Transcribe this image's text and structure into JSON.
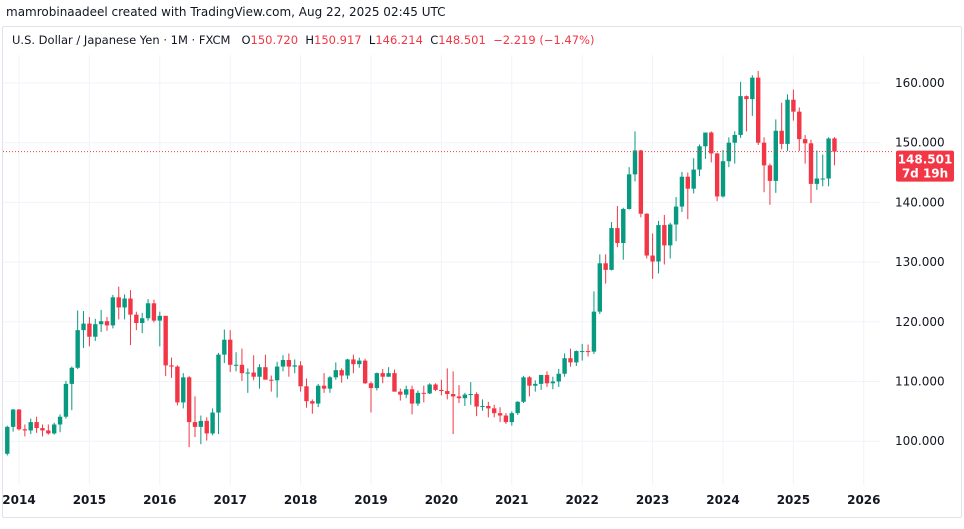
{
  "credit": "mamrobinaadeel created with TradingView.com, Aug 22, 2025 02:45 UTC",
  "legend": {
    "symbol": "U.S. Dollar / Japanese Yen",
    "interval": "1M",
    "source": "FXCM",
    "open_label": "O",
    "open": "150.720",
    "high_label": "H",
    "high": "150.917",
    "low_label": "L",
    "low": "146.214",
    "close_label": "C",
    "close": "148.501",
    "change": "−2.219 (−1.47%)"
  },
  "price_label": {
    "price": "148.501",
    "countdown": "7d 19h"
  },
  "colors": {
    "up": "#089981",
    "down": "#f23645",
    "grid": "#f0f3fa",
    "last_price": "#f23645"
  },
  "chart_data": {
    "type": "candlestick",
    "interval": "1M",
    "first_month": "2013-11",
    "last_price": 148.501,
    "ylim": [
      95,
      165
    ],
    "yticks": [
      "100.000",
      "110.000",
      "120.000",
      "130.000",
      "140.000",
      "150.000",
      "160.000"
    ],
    "xticks": [
      "2014",
      "2015",
      "2016",
      "2017",
      "2018",
      "2019",
      "2020",
      "2021",
      "2022",
      "2023",
      "2024",
      "2025",
      "2026"
    ],
    "grid": true,
    "ohlc": [
      [
        97.9,
        102.6,
        97.6,
        102.4
      ],
      [
        102.4,
        105.4,
        101.6,
        105.3
      ],
      [
        105.3,
        105.4,
        101.8,
        102.0
      ],
      [
        102.0,
        102.8,
        100.8,
        101.8
      ],
      [
        101.8,
        103.8,
        101.2,
        103.2
      ],
      [
        103.2,
        104.1,
        101.4,
        102.2
      ],
      [
        102.2,
        102.8,
        100.8,
        101.8
      ],
      [
        101.8,
        102.8,
        101.1,
        101.3
      ],
      [
        101.3,
        103.1,
        101.1,
        102.8
      ],
      [
        102.8,
        104.5,
        101.5,
        104.1
      ],
      [
        104.1,
        110.1,
        103.8,
        109.6
      ],
      [
        109.6,
        112.5,
        105.2,
        112.3
      ],
      [
        112.3,
        121.9,
        112.1,
        118.6
      ],
      [
        118.6,
        121.8,
        115.6,
        119.7
      ],
      [
        119.7,
        120.8,
        115.9,
        117.5
      ],
      [
        117.5,
        120.5,
        116.8,
        119.6
      ],
      [
        119.6,
        122.0,
        118.3,
        120.1
      ],
      [
        120.1,
        120.8,
        118.5,
        119.4
      ],
      [
        119.4,
        124.5,
        118.9,
        124.1
      ],
      [
        124.1,
        125.9,
        120.4,
        122.4
      ],
      [
        122.4,
        124.6,
        120.4,
        123.9
      ],
      [
        123.9,
        125.3,
        116.1,
        121.2
      ],
      [
        121.2,
        121.7,
        118.6,
        119.8
      ],
      [
        119.8,
        121.5,
        118.1,
        120.6
      ],
      [
        120.6,
        123.8,
        120.2,
        123.1
      ],
      [
        123.1,
        123.7,
        119.9,
        120.2
      ],
      [
        120.2,
        121.7,
        115.9,
        121.0
      ],
      [
        121.0,
        121.0,
        110.9,
        112.7
      ],
      [
        112.7,
        114.0,
        110.6,
        112.5
      ],
      [
        112.5,
        112.7,
        106.0,
        106.5
      ],
      [
        106.5,
        111.4,
        105.5,
        110.7
      ],
      [
        110.7,
        110.9,
        99.0,
        103.2
      ],
      [
        103.2,
        107.5,
        100.7,
        102.4
      ],
      [
        102.4,
        104.3,
        99.5,
        103.4
      ],
      [
        103.4,
        104.0,
        100.1,
        101.3
      ],
      [
        101.3,
        105.5,
        101.0,
        104.8
      ],
      [
        104.8,
        114.8,
        101.2,
        114.5
      ],
      [
        114.5,
        118.7,
        113.1,
        117.0
      ],
      [
        117.0,
        118.6,
        111.6,
        112.8
      ],
      [
        112.8,
        114.9,
        111.7,
        112.8
      ],
      [
        112.8,
        115.5,
        110.1,
        111.4
      ],
      [
        111.4,
        112.2,
        108.1,
        111.5
      ],
      [
        111.5,
        114.4,
        110.2,
        110.8
      ],
      [
        110.8,
        112.9,
        108.8,
        112.4
      ],
      [
        112.4,
        114.5,
        110.6,
        110.3
      ],
      [
        110.3,
        111.0,
        108.3,
        110.2
      ],
      [
        110.2,
        113.3,
        107.3,
        112.5
      ],
      [
        112.5,
        114.4,
        111.7,
        113.6
      ],
      [
        113.6,
        114.7,
        110.8,
        112.5
      ],
      [
        112.5,
        113.7,
        111.4,
        112.7
      ],
      [
        112.7,
        113.4,
        108.3,
        109.2
      ],
      [
        109.2,
        110.5,
        105.6,
        106.7
      ],
      [
        106.7,
        107.0,
        104.6,
        106.3
      ],
      [
        106.3,
        109.6,
        105.7,
        109.3
      ],
      [
        109.3,
        111.4,
        108.1,
        108.8
      ],
      [
        108.8,
        110.9,
        108.1,
        110.7
      ],
      [
        110.7,
        113.2,
        110.3,
        111.9
      ],
      [
        111.9,
        112.2,
        109.8,
        111.0
      ],
      [
        111.0,
        113.8,
        110.4,
        113.7
      ],
      [
        113.7,
        114.5,
        111.4,
        112.9
      ],
      [
        112.9,
        114.0,
        112.3,
        113.5
      ],
      [
        113.5,
        113.8,
        109.6,
        109.7
      ],
      [
        109.7,
        110.0,
        104.8,
        108.9
      ],
      [
        108.9,
        111.5,
        108.5,
        111.4
      ],
      [
        111.4,
        112.1,
        109.7,
        110.8
      ],
      [
        110.8,
        112.4,
        110.8,
        111.4
      ],
      [
        111.4,
        112.0,
        108.3,
        108.3
      ],
      [
        108.3,
        108.8,
        106.8,
        107.8
      ],
      [
        107.8,
        109.3,
        107.2,
        108.7
      ],
      [
        108.7,
        109.3,
        104.5,
        106.3
      ],
      [
        106.3,
        108.5,
        105.9,
        108.1
      ],
      [
        108.1,
        109.3,
        106.5,
        108.0
      ],
      [
        108.0,
        109.7,
        107.9,
        109.5
      ],
      [
        109.5,
        109.7,
        108.4,
        108.6
      ],
      [
        108.6,
        110.3,
        107.7,
        108.4
      ],
      [
        108.4,
        112.2,
        107.0,
        107.9
      ],
      [
        107.9,
        111.7,
        101.2,
        107.5
      ],
      [
        107.5,
        109.4,
        106.4,
        107.2
      ],
      [
        107.2,
        108.1,
        105.9,
        107.8
      ],
      [
        107.8,
        109.9,
        106.1,
        107.9
      ],
      [
        107.9,
        108.2,
        104.2,
        105.8
      ],
      [
        105.8,
        107.0,
        105.1,
        105.9
      ],
      [
        105.9,
        106.6,
        104.0,
        105.5
      ],
      [
        105.5,
        106.1,
        104.0,
        104.7
      ],
      [
        104.7,
        105.7,
        103.2,
        104.3
      ],
      [
        104.3,
        104.7,
        102.9,
        103.2
      ],
      [
        103.2,
        105.0,
        102.6,
        104.7
      ],
      [
        104.7,
        106.7,
        104.4,
        106.6
      ],
      [
        106.6,
        110.9,
        106.4,
        110.7
      ],
      [
        110.7,
        110.9,
        107.5,
        109.3
      ],
      [
        109.3,
        110.2,
        108.3,
        109.6
      ],
      [
        109.6,
        111.1,
        108.6,
        111.1
      ],
      [
        111.1,
        111.7,
        109.1,
        109.7
      ],
      [
        109.7,
        110.8,
        108.7,
        110.0
      ],
      [
        110.0,
        112.1,
        109.1,
        111.3
      ],
      [
        111.3,
        114.7,
        110.8,
        113.9
      ],
      [
        113.9,
        115.5,
        112.5,
        113.2
      ],
      [
        113.2,
        115.2,
        112.6,
        115.1
      ],
      [
        115.1,
        116.3,
        113.5,
        115.1
      ],
      [
        115.1,
        116.2,
        114.2,
        115.0
      ],
      [
        115.0,
        125.1,
        114.6,
        121.7
      ],
      [
        121.7,
        131.3,
        121.3,
        129.8
      ],
      [
        129.8,
        131.3,
        126.4,
        128.7
      ],
      [
        128.7,
        136.7,
        128.6,
        135.7
      ],
      [
        135.7,
        139.4,
        132.5,
        133.2
      ],
      [
        133.2,
        139.1,
        130.4,
        138.9
      ],
      [
        138.9,
        145.9,
        138.8,
        144.7
      ],
      [
        144.7,
        151.9,
        143.5,
        148.7
      ],
      [
        148.7,
        148.8,
        137.5,
        138.1
      ],
      [
        138.1,
        138.2,
        130.6,
        131.1
      ],
      [
        131.1,
        134.8,
        127.2,
        130.1
      ],
      [
        130.1,
        136.9,
        128.1,
        136.2
      ],
      [
        136.2,
        137.9,
        129.6,
        132.8
      ],
      [
        132.8,
        136.6,
        130.6,
        136.3
      ],
      [
        136.3,
        140.9,
        133.5,
        139.3
      ],
      [
        139.3,
        145.1,
        138.4,
        144.3
      ],
      [
        144.3,
        145.0,
        137.2,
        142.3
      ],
      [
        142.3,
        147.4,
        141.5,
        145.5
      ],
      [
        145.5,
        149.7,
        144.4,
        149.4
      ],
      [
        149.4,
        151.7,
        147.3,
        151.7
      ],
      [
        151.7,
        151.9,
        146.7,
        148.2
      ],
      [
        148.2,
        148.3,
        140.2,
        141.0
      ],
      [
        141.0,
        148.8,
        140.8,
        146.9
      ],
      [
        146.9,
        150.9,
        145.9,
        150.0
      ],
      [
        150.0,
        151.9,
        146.5,
        151.3
      ],
      [
        151.3,
        160.2,
        150.8,
        157.8
      ],
      [
        157.8,
        157.9,
        151.9,
        157.3
      ],
      [
        157.3,
        161.3,
        154.5,
        160.9
      ],
      [
        160.9,
        162.0,
        149.6,
        150.0
      ],
      [
        150.0,
        150.9,
        141.7,
        146.2
      ],
      [
        146.2,
        146.5,
        139.6,
        143.6
      ],
      [
        143.6,
        153.9,
        141.6,
        152.0
      ],
      [
        152.0,
        156.7,
        148.9,
        149.8
      ],
      [
        149.8,
        158.1,
        148.6,
        157.2
      ],
      [
        157.2,
        158.9,
        153.7,
        155.2
      ],
      [
        155.2,
        155.9,
        148.6,
        150.6
      ],
      [
        150.6,
        151.3,
        146.5,
        149.9
      ],
      [
        149.9,
        150.5,
        139.9,
        143.1
      ],
      [
        143.1,
        148.7,
        142.1,
        144.0
      ],
      [
        144.0,
        148.0,
        142.7,
        144.0
      ],
      [
        144.0,
        150.9,
        142.7,
        150.7
      ],
      [
        150.72,
        150.917,
        146.214,
        148.501
      ]
    ]
  }
}
